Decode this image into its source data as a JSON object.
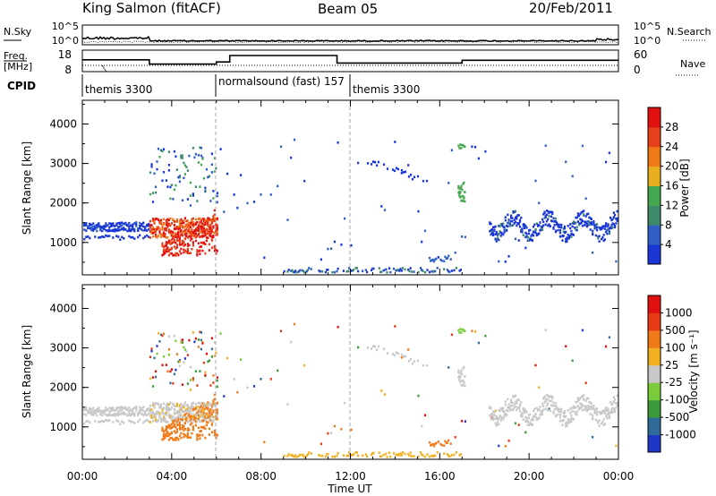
{
  "header": {
    "station": "King Salmon (fitACF)",
    "beam": "Beam 05",
    "date": "20/Feb/2011"
  },
  "noise_panel": {
    "left_label": "N.Sky",
    "right_label": "N.Search",
    "left_ticks": [
      "10^5",
      "10^0"
    ],
    "right_ticks": [
      "10^5",
      "10^0"
    ]
  },
  "freq_panel": {
    "label_top": "Freq.",
    "label_bottom": "[MHz]",
    "right_label": "Nave",
    "left_ticks": [
      "18",
      "8"
    ],
    "right_ticks": [
      "60",
      "0"
    ],
    "freq_steps": [
      {
        "start": 0,
        "end": 3,
        "value": 13.5
      },
      {
        "start": 3,
        "end": 6,
        "value": 11.5
      },
      {
        "start": 6,
        "end": 6.6,
        "value": 12.5
      },
      {
        "start": 6.6,
        "end": 11.4,
        "value": 15.5
      },
      {
        "start": 11.4,
        "end": 17,
        "value": 12.0
      },
      {
        "start": 17,
        "end": 24,
        "value": 13.3
      }
    ]
  },
  "cpid": {
    "label": "CPID",
    "segments": [
      {
        "start": 0,
        "end": 6,
        "text": "themis 3300"
      },
      {
        "start": 6,
        "end": 12,
        "text": "normalsound (fast) 157"
      },
      {
        "start": 12,
        "end": 24,
        "text": "themis 3300"
      }
    ]
  },
  "chart_data": [
    {
      "type": "heatmap",
      "name": "power",
      "ylabel": "Slant Range [km]",
      "ylim": [
        180,
        4600
      ],
      "yticks": [
        "1000",
        "2000",
        "3000",
        "4000"
      ],
      "xlim": [
        0,
        24
      ],
      "colorbar": {
        "label": "Power [dB]",
        "ticks": [
          "4",
          "8",
          "12",
          "16",
          "20",
          "24",
          "28"
        ],
        "colors": [
          "#1a36d6",
          "#2f5ec4",
          "#3f8a6a",
          "#45a650",
          "#e8b020",
          "#f07a18",
          "#e8401a",
          "#e01010"
        ]
      }
    },
    {
      "type": "heatmap",
      "name": "velocity",
      "ylabel": "Slant Range [km]",
      "ylim": [
        180,
        4600
      ],
      "yticks": [
        "1000",
        "2000",
        "3000",
        "4000"
      ],
      "xlim": [
        0,
        24
      ],
      "colorbar": {
        "label": "Velocity [m s⁻¹]",
        "ticks": [
          "1000",
          "500",
          "100",
          "25",
          "-25",
          "-100",
          "-500",
          "-1000"
        ],
        "colors": [
          "#2036c8",
          "#2f6a9a",
          "#3a9a3a",
          "#7acc3a",
          "#c8c8c8",
          "#f0b020",
          "#f07a18",
          "#e83a14",
          "#e01010"
        ]
      }
    }
  ],
  "x_axis": {
    "ticks": [
      "00:00",
      "04:00",
      "08:00",
      "12:00",
      "16:00",
      "20:00",
      "00:00"
    ],
    "label": "Time UT"
  }
}
